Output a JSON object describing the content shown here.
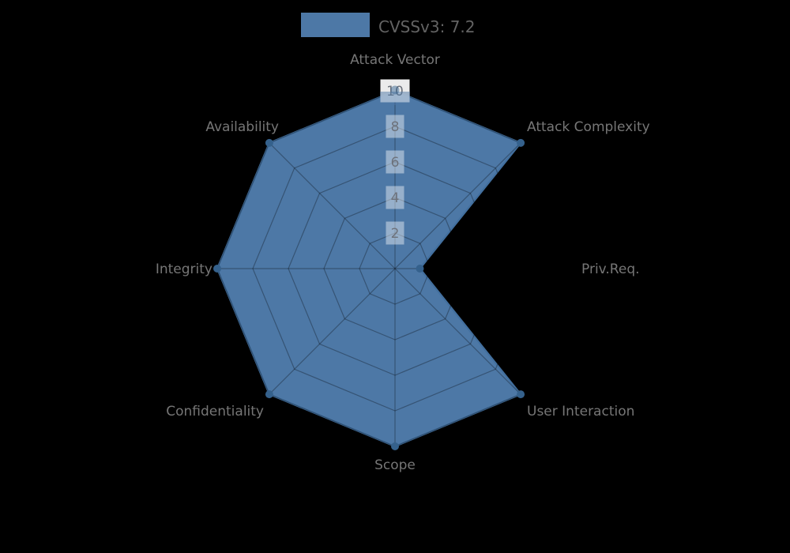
{
  "page": {
    "background_color": "#000000"
  },
  "legend": {
    "label": "CVSSv3: 7.2"
  },
  "chart_data": {
    "type": "radar",
    "title": "CVSSv3: 7.2",
    "score": 7.2,
    "categories": [
      "Attack Vector",
      "Attack Complexity",
      "Priv.Req.",
      "User Interaction",
      "Scope",
      "Confidentiality",
      "Integrity",
      "Availability"
    ],
    "series": [
      {
        "name": "CVSSv3: 7.2",
        "values": [
          10,
          10,
          1.4,
          10,
          10,
          10,
          10,
          10
        ]
      }
    ],
    "ticks": [
      2,
      4,
      6,
      8,
      10
    ],
    "range": [
      0,
      10
    ],
    "grid": true,
    "legend_position": "top-center",
    "colors": {
      "fill": "#4d78a6",
      "stroke": "#426f9e",
      "marker": "#35618c",
      "grid_line": "rgba(0,0,0,0.3)",
      "axis_label": "#767676",
      "tick_text": "#6d727b",
      "tick_box": "#ffffff",
      "legend_text": "#636363"
    }
  }
}
